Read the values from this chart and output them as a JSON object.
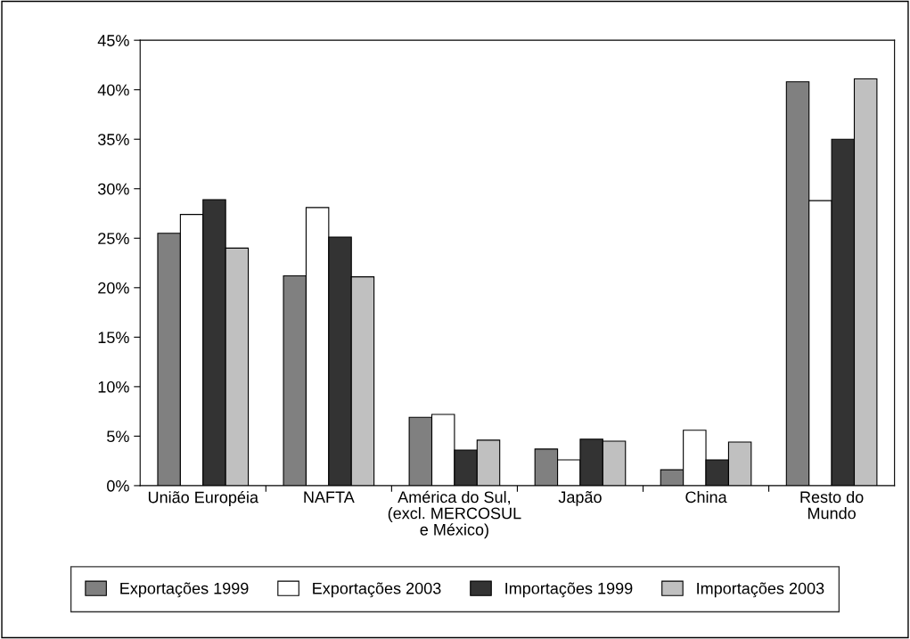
{
  "chart_data": {
    "type": "bar",
    "categories": [
      "União Européia",
      "NAFTA",
      "América do Sul,\n(excl. MERCOSUL\ne México)",
      "Japão",
      "China",
      "Resto do\nMundo"
    ],
    "series": [
      {
        "name": "Exportações 1999",
        "color": "#808080",
        "values": [
          25.5,
          21.2,
          6.9,
          3.7,
          1.6,
          40.8
        ]
      },
      {
        "name": "Exportações 2003",
        "color": "#ffffff",
        "values": [
          27.4,
          28.1,
          7.2,
          2.6,
          5.6,
          28.8
        ]
      },
      {
        "name": "Importações 1999",
        "color": "#333333",
        "values": [
          28.9,
          25.1,
          3.6,
          4.7,
          2.6,
          35.0
        ]
      },
      {
        "name": "Importações 2003",
        "color": "#c0c0c0",
        "values": [
          24.0,
          21.1,
          4.6,
          4.5,
          4.4,
          41.1
        ]
      }
    ],
    "ylim": [
      0,
      45
    ],
    "yticks": [
      {
        "value": 0,
        "label": "0%"
      },
      {
        "value": 5,
        "label": "5%"
      },
      {
        "value": 10,
        "label": "10%"
      },
      {
        "value": 15,
        "label": "15%"
      },
      {
        "value": 20,
        "label": "20%"
      },
      {
        "value": 25,
        "label": "25%"
      },
      {
        "value": 30,
        "label": "30%"
      },
      {
        "value": 35,
        "label": "35%"
      },
      {
        "value": 40,
        "label": "40%"
      },
      {
        "value": 45,
        "label": "45%"
      }
    ],
    "legend": "bottom",
    "grid": false
  }
}
